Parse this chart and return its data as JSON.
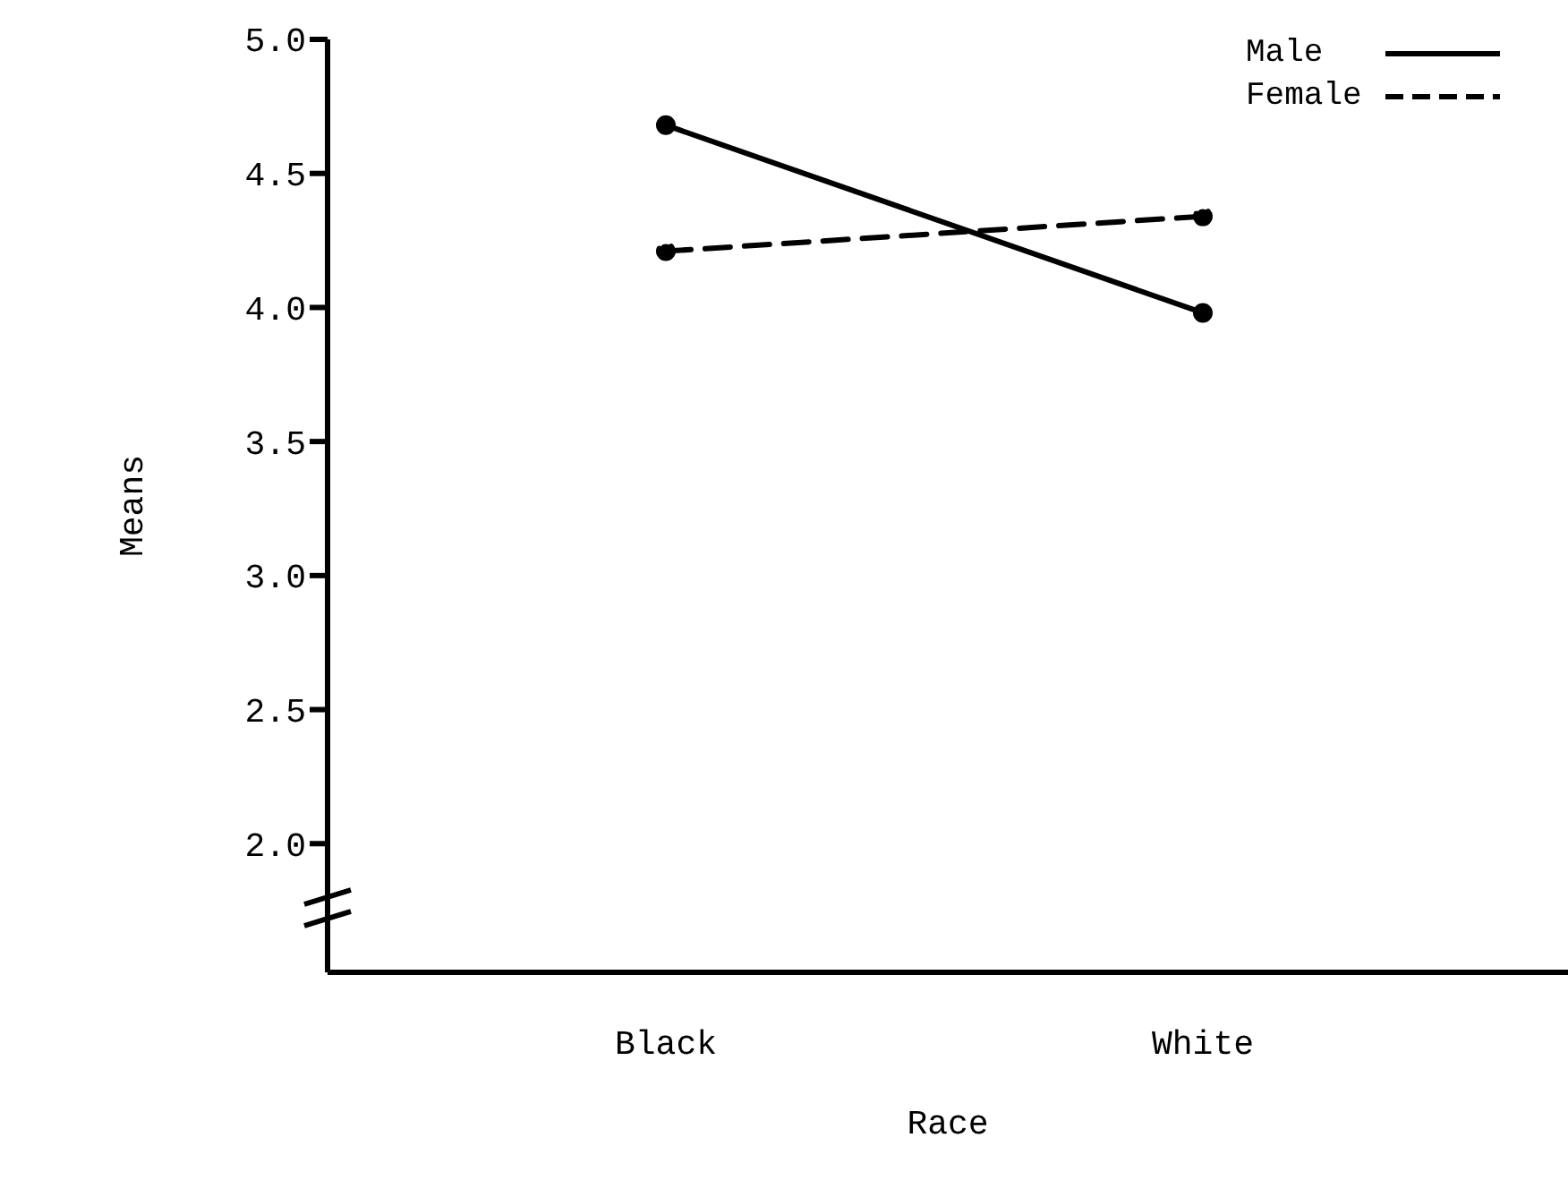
{
  "chart_data": {
    "type": "line",
    "xlabel": "Race",
    "ylabel": "Means",
    "categories": [
      "Black",
      "White"
    ],
    "series": [
      {
        "name": "Male",
        "color": "#000000",
        "values": [
          4.68,
          3.98
        ],
        "line_style": "solid"
      },
      {
        "name": "Female",
        "color": "#000000",
        "values": [
          4.21,
          4.34
        ],
        "line_style": "dashed"
      }
    ],
    "ylim": [
      1.52,
      5.0
    ],
    "yticks": [
      {
        "value": 2.0,
        "label": "2.0"
      },
      {
        "value": 2.5,
        "label": "2.5"
      },
      {
        "value": 3.0,
        "label": "3.0"
      },
      {
        "value": 3.5,
        "label": "3.5"
      },
      {
        "value": 4.0,
        "label": "4.0"
      },
      {
        "value": 4.5,
        "label": "4.5"
      },
      {
        "value": 5.0,
        "label": "5.0"
      }
    ],
    "marker": "circle",
    "legend": "top right",
    "grid": false
  }
}
